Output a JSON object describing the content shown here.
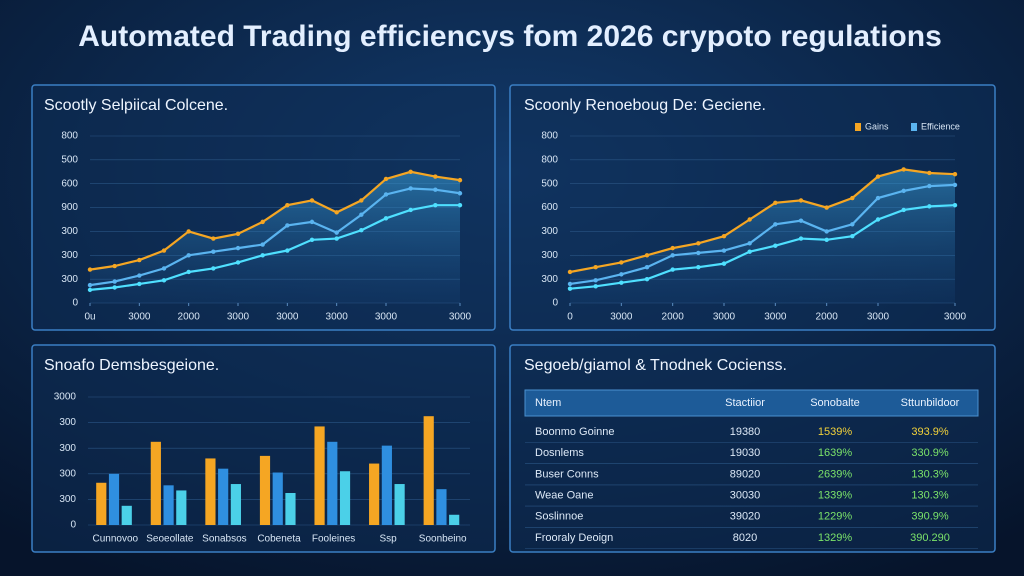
{
  "title": "Automated Trading efficiencys fom 2026 crypoto regulations",
  "chart_data": [
    {
      "type": "line",
      "title": "Scootly Selpiical Colcene.",
      "x": [
        0,
        1,
        2,
        3,
        4,
        5,
        6,
        7,
        8,
        9,
        10,
        11,
        12,
        13,
        14,
        15
      ],
      "xlim": [
        0,
        15
      ],
      "xticks": [
        {
          "value": 0,
          "label": "0u"
        },
        {
          "value": 2,
          "label": "3000"
        },
        {
          "value": 4,
          "label": "2000"
        },
        {
          "value": 6,
          "label": "3000"
        },
        {
          "value": 8,
          "label": "3000"
        },
        {
          "value": 10,
          "label": "3000"
        },
        {
          "value": 12,
          "label": "3000"
        },
        {
          "value": 15,
          "label": "3000"
        }
      ],
      "ylim": [
        0,
        700
      ],
      "yticks": [
        0,
        {
          "value": 100,
          "label": "300"
        },
        {
          "value": 200,
          "label": "300"
        },
        {
          "value": 300,
          "label": "300"
        },
        {
          "value": 400,
          "label": "900"
        },
        {
          "value": 500,
          "label": "600"
        },
        {
          "value": 600,
          "label": "500"
        },
        {
          "value": 700,
          "label": "800"
        }
      ],
      "grid": true,
      "series": [
        {
          "color": "#f5a623",
          "values": [
            140,
            155,
            180,
            220,
            300,
            270,
            290,
            340,
            410,
            430,
            380,
            430,
            520,
            550,
            530,
            515
          ]
        },
        {
          "color": "#5ab4f0",
          "values": [
            75,
            90,
            115,
            145,
            200,
            215,
            230,
            245,
            325,
            340,
            295,
            370,
            455,
            480,
            475,
            460
          ]
        },
        {
          "color": "#4fe0ff",
          "values": [
            55,
            65,
            80,
            95,
            130,
            145,
            170,
            200,
            220,
            265,
            270,
            305,
            355,
            390,
            410,
            410
          ]
        }
      ]
    },
    {
      "type": "line",
      "title": "Scoonly Renoeboug De: Geciene.",
      "x": [
        0,
        1,
        2,
        3,
        4,
        5,
        6,
        7,
        8,
        9,
        10,
        11,
        12,
        13,
        14,
        15
      ],
      "xlim": [
        0,
        15
      ],
      "xticks": [
        {
          "value": 0,
          "label": "0"
        },
        {
          "value": 2,
          "label": "3000"
        },
        {
          "value": 4,
          "label": "2000"
        },
        {
          "value": 6,
          "label": "3000"
        },
        {
          "value": 8,
          "label": "3000"
        },
        {
          "value": 10,
          "label": "2000"
        },
        {
          "value": 12,
          "label": "3000"
        },
        {
          "value": 15,
          "label": "3000"
        }
      ],
      "ylim": [
        0,
        700
      ],
      "yticks": [
        0,
        {
          "value": 100,
          "label": "300"
        },
        {
          "value": 200,
          "label": "300"
        },
        {
          "value": 300,
          "label": "300"
        },
        {
          "value": 400,
          "label": "600"
        },
        {
          "value": 500,
          "label": "500"
        },
        {
          "value": 600,
          "label": "800"
        },
        {
          "value": 700,
          "label": "800"
        }
      ],
      "grid": true,
      "legend": "upper right",
      "series": [
        {
          "name": "Gains",
          "color": "#f5a623",
          "values": [
            130,
            150,
            170,
            200,
            230,
            250,
            280,
            350,
            420,
            430,
            400,
            440,
            530,
            560,
            545,
            540
          ]
        },
        {
          "name": "Efficience",
          "color": "#5ab4f0",
          "values": [
            80,
            95,
            120,
            150,
            200,
            210,
            220,
            250,
            330,
            345,
            300,
            330,
            440,
            470,
            490,
            495
          ]
        },
        {
          "color": "#4fe0ff",
          "values": [
            60,
            70,
            85,
            100,
            140,
            150,
            165,
            215,
            240,
            270,
            265,
            280,
            350,
            390,
            405,
            410
          ]
        }
      ]
    },
    {
      "type": "bar",
      "title": "Snoafo Demsbesgeione.",
      "categories": [
        "Cunnovoo",
        "Seoeollate",
        "Sonabsos",
        "Cobeneta",
        "Fooleines",
        "Ssp",
        "Soonbeino"
      ],
      "ylim": [
        0,
        500
      ],
      "yticks": [
        0,
        {
          "value": 100,
          "label": "300"
        },
        {
          "value": 200,
          "label": "300"
        },
        {
          "value": 300,
          "label": "300"
        },
        {
          "value": 400,
          "label": "300"
        },
        {
          "value": 500,
          "label": "3000"
        }
      ],
      "grid": true,
      "series": [
        {
          "color": "#f5a623",
          "values": [
            165,
            325,
            260,
            270,
            385,
            240,
            425
          ]
        },
        {
          "color": "#2f8fe0",
          "values": [
            200,
            155,
            220,
            205,
            325,
            310,
            140
          ]
        },
        {
          "color": "#4bd0e8",
          "values": [
            75,
            135,
            160,
            125,
            210,
            160,
            40
          ]
        }
      ]
    }
  ],
  "table": {
    "title": "Segoeb/giamol & Tnodnek Cocienss.",
    "header": [
      "Ntem",
      "Stactiior",
      "Sonobalte",
      "Sttunbildoor"
    ],
    "rows": [
      [
        "Boonmo Goinne",
        "19380",
        "1539%",
        "393.9%"
      ],
      [
        "Dosnlems",
        "19030",
        "1639%",
        "330.9%"
      ],
      [
        "Buser Conns",
        "89020",
        "2639%",
        "130.3%"
      ],
      [
        "Weae Oane",
        "30030",
        "1339%",
        "130.3%"
      ],
      [
        "Soslinnoe",
        "39020",
        "1229%",
        "390.9%"
      ],
      [
        "Frooraly Deoign",
        "8020",
        "1329%",
        "390.290"
      ]
    ]
  }
}
